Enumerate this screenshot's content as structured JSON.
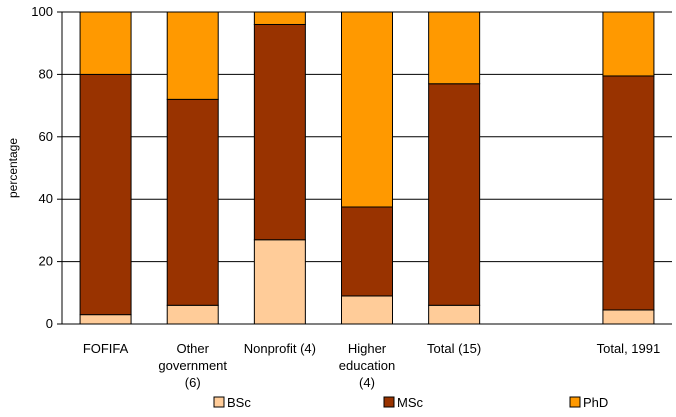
{
  "chart_data": {
    "type": "bar",
    "stacked": true,
    "categories": [
      [
        "FOFIFA"
      ],
      [
        "Other",
        "government",
        "(6)"
      ],
      [
        "Nonprofit (4)"
      ],
      [
        "Higher",
        "education",
        "(4)"
      ],
      [
        "Total (15)"
      ],
      [
        ""
      ],
      [
        "Total, 1991"
      ]
    ],
    "series": [
      {
        "name": "BSc",
        "color": "#FFCC99",
        "values": [
          3,
          6,
          27,
          9,
          6,
          null,
          4.5
        ]
      },
      {
        "name": "MSc",
        "color": "#993300",
        "values": [
          77,
          66,
          69,
          28.5,
          71,
          null,
          75
        ]
      },
      {
        "name": "PhD",
        "color": "#FF9900",
        "values": [
          20,
          28,
          4,
          62.5,
          23,
          null,
          20.5
        ]
      }
    ],
    "ylabel": "percentage",
    "ylim": [
      0,
      100
    ],
    "yticks": [
      0,
      20,
      40,
      60,
      80,
      100
    ],
    "grid": true,
    "legend": "bottom"
  }
}
